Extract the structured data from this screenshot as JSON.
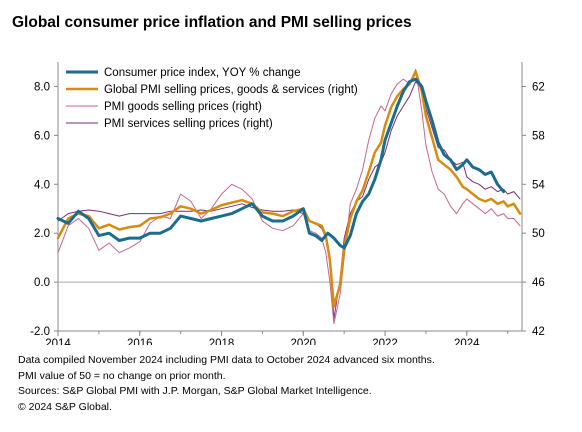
{
  "title": "Global consumer price inflation and PMI selling prices",
  "notes": [
    "Data compiled November 2024 including PMI data to October 2024 advanced six months.",
    "PMI value of 50 = no change on prior month.",
    "Sources: S&P Global PMI with J.P. Morgan, S&P Global Market Intelligence.",
    "© 2024 S&P Global."
  ],
  "chart_data": {
    "type": "line",
    "x_ticks": [
      "2014",
      "2016",
      "2018",
      "2020",
      "2022",
      "2024"
    ],
    "x_range": [
      2014.0,
      2025.35
    ],
    "y_left": {
      "ticks": [
        "-2.0",
        "0.0",
        "2.0",
        "4.0",
        "6.0",
        "8.0"
      ],
      "ylim": [
        -2.0,
        9.0
      ]
    },
    "y_right": {
      "ticks": [
        "42",
        "46",
        "50",
        "54",
        "58",
        "62"
      ],
      "ylim": [
        42,
        64
      ]
    },
    "legend_position": "top-left",
    "series": [
      {
        "name": "Consumer price index, YOY % change",
        "axis": "left",
        "color": "#1a6d8e",
        "width": 3,
        "x": [
          2014.0,
          2014.25,
          2014.5,
          2014.75,
          2015.0,
          2015.25,
          2015.5,
          2015.75,
          2016.0,
          2016.25,
          2016.5,
          2016.75,
          2017.0,
          2017.25,
          2017.5,
          2017.75,
          2018.0,
          2018.25,
          2018.5,
          2018.75,
          2019.0,
          2019.25,
          2019.5,
          2019.75,
          2020.0,
          2020.15,
          2020.3,
          2020.45,
          2020.6,
          2020.75,
          2020.9,
          2021.0,
          2021.15,
          2021.3,
          2021.45,
          2021.6,
          2021.75,
          2021.9,
          2022.0,
          2022.15,
          2022.3,
          2022.45,
          2022.6,
          2022.75,
          2022.9,
          2023.0,
          2023.15,
          2023.3,
          2023.45,
          2023.6,
          2023.75,
          2023.9,
          2024.0,
          2024.15,
          2024.3,
          2024.45,
          2024.6,
          2024.75,
          2024.9
        ],
        "y": [
          2.6,
          2.4,
          2.9,
          2.6,
          1.9,
          2.0,
          1.7,
          1.8,
          1.8,
          2.0,
          2.0,
          2.2,
          2.7,
          2.6,
          2.5,
          2.6,
          2.7,
          2.8,
          3.0,
          3.2,
          2.7,
          2.5,
          2.5,
          2.7,
          3.0,
          2.0,
          1.9,
          1.7,
          2.0,
          1.8,
          1.5,
          1.4,
          1.9,
          2.8,
          3.3,
          3.6,
          4.2,
          5.0,
          5.8,
          6.5,
          7.2,
          7.8,
          8.2,
          8.3,
          8.0,
          7.4,
          6.6,
          5.7,
          5.2,
          5.0,
          4.6,
          4.8,
          5.0,
          4.7,
          4.6,
          4.4,
          4.5,
          4.0,
          3.7
        ]
      },
      {
        "name": "Global PMI selling prices, goods & services (right)",
        "axis": "right",
        "color": "#d88b0f",
        "width": 2.5,
        "x": [
          2014.0,
          2014.25,
          2014.5,
          2014.75,
          2015.0,
          2015.25,
          2015.5,
          2015.75,
          2016.0,
          2016.25,
          2016.5,
          2016.75,
          2017.0,
          2017.25,
          2017.5,
          2017.75,
          2018.0,
          2018.25,
          2018.5,
          2018.75,
          2019.0,
          2019.25,
          2019.5,
          2019.75,
          2020.0,
          2020.15,
          2020.3,
          2020.45,
          2020.55,
          2020.65,
          2020.75,
          2020.9,
          2021.0,
          2021.15,
          2021.3,
          2021.45,
          2021.6,
          2021.75,
          2021.9,
          2022.0,
          2022.15,
          2022.3,
          2022.45,
          2022.6,
          2022.75,
          2022.9,
          2023.0,
          2023.15,
          2023.3,
          2023.45,
          2023.6,
          2023.75,
          2023.9,
          2024.0,
          2024.15,
          2024.3,
          2024.45,
          2024.6,
          2024.75,
          2024.9,
          2025.0,
          2025.15,
          2025.3
        ],
        "y": [
          49.6,
          51.2,
          51.6,
          51.4,
          50.4,
          50.7,
          50.3,
          50.5,
          50.6,
          51.2,
          51.3,
          51.6,
          52.2,
          52.0,
          51.6,
          51.9,
          52.3,
          52.5,
          52.7,
          52.4,
          51.7,
          51.6,
          51.4,
          51.8,
          52.0,
          51.0,
          50.8,
          50.6,
          49.8,
          47.8,
          44.0,
          45.8,
          48.8,
          51.2,
          52.6,
          53.5,
          55.0,
          56.6,
          57.4,
          58.8,
          60.3,
          61.2,
          61.8,
          62.2,
          63.2,
          61.6,
          59.6,
          57.8,
          56.0,
          55.6,
          55.2,
          54.6,
          53.8,
          53.6,
          53.2,
          52.8,
          52.6,
          52.8,
          52.4,
          52.6,
          52.2,
          52.4,
          51.6
        ]
      },
      {
        "name": "PMI goods selling prices (right)",
        "axis": "right",
        "color": "#c7668f",
        "width": 1,
        "x": [
          2014.0,
          2014.25,
          2014.5,
          2014.75,
          2015.0,
          2015.25,
          2015.5,
          2015.75,
          2016.0,
          2016.25,
          2016.5,
          2016.75,
          2017.0,
          2017.25,
          2017.5,
          2017.75,
          2018.0,
          2018.25,
          2018.5,
          2018.75,
          2019.0,
          2019.25,
          2019.5,
          2019.75,
          2020.0,
          2020.15,
          2020.3,
          2020.45,
          2020.55,
          2020.65,
          2020.75,
          2020.9,
          2021.0,
          2021.15,
          2021.3,
          2021.45,
          2021.6,
          2021.75,
          2021.9,
          2022.0,
          2022.15,
          2022.3,
          2022.45,
          2022.6,
          2022.75,
          2022.9,
          2023.0,
          2023.15,
          2023.3,
          2023.45,
          2023.6,
          2023.75,
          2023.9,
          2024.0,
          2024.15,
          2024.3,
          2024.45,
          2024.6,
          2024.75,
          2024.9,
          2025.0,
          2025.15,
          2025.3
        ],
        "y": [
          48.4,
          50.6,
          51.2,
          50.4,
          48.6,
          49.2,
          48.4,
          48.8,
          49.3,
          50.8,
          51.4,
          51.2,
          53.2,
          52.6,
          51.2,
          52.0,
          53.2,
          54.0,
          53.6,
          52.8,
          51.0,
          50.4,
          50.2,
          50.6,
          51.6,
          50.2,
          50.0,
          49.6,
          48.4,
          46.0,
          42.6,
          45.0,
          48.0,
          52.4,
          53.6,
          55.2,
          57.6,
          59.4,
          60.4,
          60.0,
          61.4,
          62.2,
          62.6,
          62.2,
          63.4,
          60.0,
          57.2,
          55.0,
          53.6,
          53.2,
          52.2,
          51.6,
          52.4,
          52.8,
          52.4,
          52.0,
          51.6,
          52.0,
          51.4,
          51.6,
          51.2,
          51.2,
          50.6
        ]
      },
      {
        "name": "PMI services selling prices (right)",
        "axis": "right",
        "color": "#7a2e73",
        "width": 1,
        "x": [
          2014.0,
          2014.25,
          2014.5,
          2014.75,
          2015.0,
          2015.25,
          2015.5,
          2015.75,
          2016.0,
          2016.25,
          2016.5,
          2016.75,
          2017.0,
          2017.25,
          2017.5,
          2017.75,
          2018.0,
          2018.25,
          2018.5,
          2018.75,
          2019.0,
          2019.25,
          2019.5,
          2019.75,
          2020.0,
          2020.15,
          2020.3,
          2020.45,
          2020.55,
          2020.65,
          2020.75,
          2020.9,
          2021.0,
          2021.15,
          2021.3,
          2021.45,
          2021.6,
          2021.75,
          2021.9,
          2022.0,
          2022.15,
          2022.3,
          2022.45,
          2022.6,
          2022.75,
          2022.9,
          2023.0,
          2023.15,
          2023.3,
          2023.45,
          2023.6,
          2023.75,
          2023.9,
          2024.0,
          2024.15,
          2024.3,
          2024.45,
          2024.6,
          2024.75,
          2024.9,
          2025.0,
          2025.15,
          2025.3
        ],
        "y": [
          51.0,
          51.6,
          51.8,
          51.9,
          51.8,
          51.6,
          51.4,
          51.6,
          51.6,
          51.6,
          51.6,
          51.8,
          51.8,
          51.8,
          51.9,
          51.8,
          52.0,
          52.2,
          52.4,
          52.1,
          51.9,
          51.8,
          51.8,
          51.9,
          51.6,
          51.0,
          50.8,
          50.4,
          49.6,
          47.6,
          43.0,
          46.2,
          49.6,
          51.6,
          52.6,
          53.0,
          54.4,
          55.4,
          55.8,
          56.6,
          58.4,
          59.6,
          60.4,
          61.2,
          62.4,
          61.8,
          60.2,
          58.6,
          57.0,
          56.8,
          56.0,
          55.6,
          55.8,
          54.6,
          54.2,
          54.0,
          53.6,
          53.8,
          53.4,
          53.6,
          53.2,
          53.4,
          52.8
        ]
      }
    ]
  }
}
